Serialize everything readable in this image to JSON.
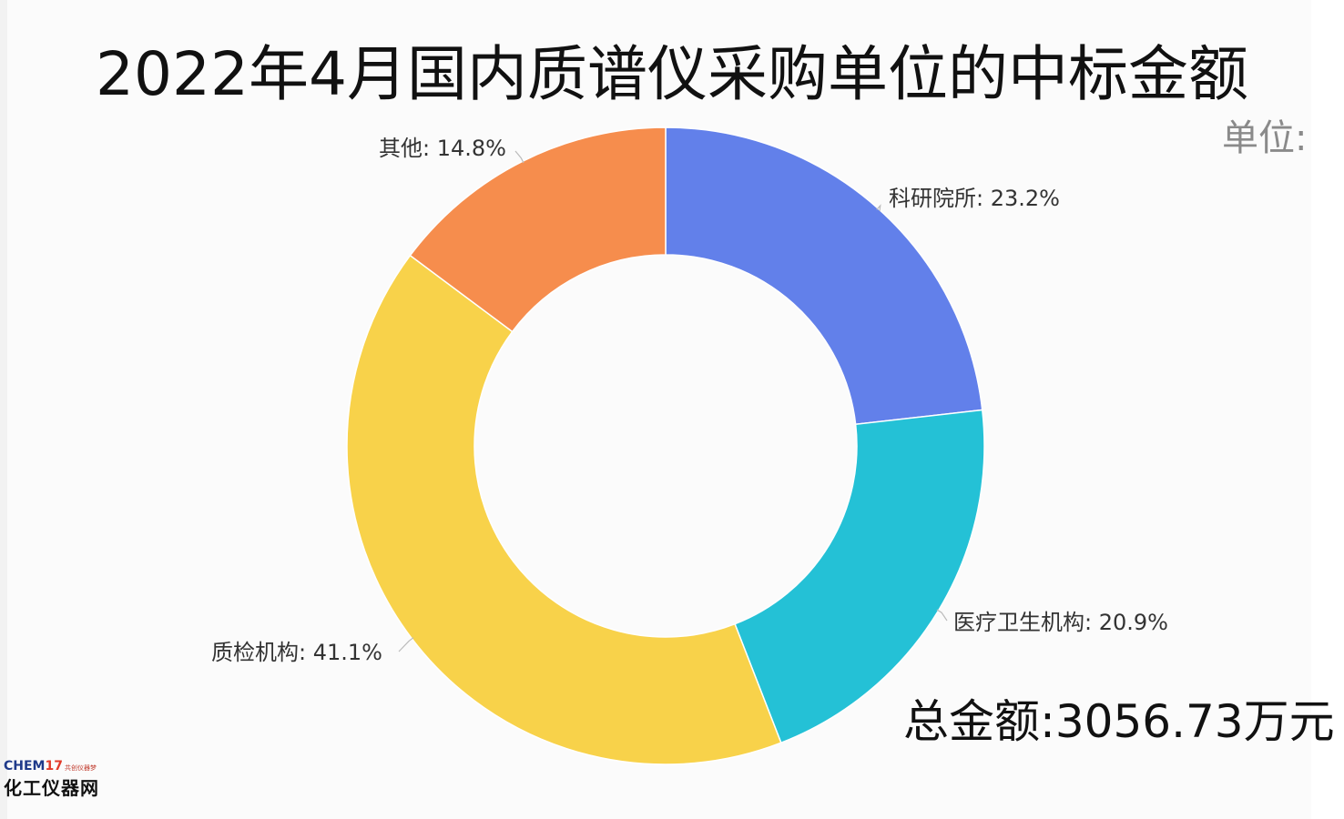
{
  "chart_data": {
    "type": "pie",
    "donut": true,
    "title": "2022年4月国内质谱仪采购单位的中标金额",
    "unit_label": "单位:",
    "total_label": "总金额:3056.73万元",
    "label_separator": ": ",
    "start_angle_deg": 0,
    "direction": "clockwise",
    "slices": [
      {
        "name": "科研院所",
        "value": 23.2,
        "display": "23.2%",
        "color": "#6280ea"
      },
      {
        "name": "医疗卫生机构",
        "value": 20.9,
        "display": "20.9%",
        "color": "#24c1d6"
      },
      {
        "name": "质检机构",
        "value": 41.1,
        "display": "41.1%",
        "color": "#f8d24a"
      },
      {
        "name": "其他",
        "value": 14.8,
        "display": "14.8%",
        "color": "#f68d4d"
      }
    ]
  },
  "logo": {
    "brand_prefix": "CHEM",
    "brand_number": "17",
    "slogan": "共创仪器梦",
    "name": "化工仪器网"
  }
}
